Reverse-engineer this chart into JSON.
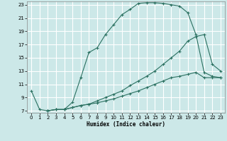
{
  "bg_color": "#cce8e8",
  "grid_color": "#b8d8d8",
  "line_color": "#2a7060",
  "xlabel": "Humidex (Indice chaleur)",
  "xmin": 0,
  "xmax": 23,
  "ymin": 7,
  "ymax": 23,
  "yticks": [
    7,
    9,
    11,
    13,
    15,
    17,
    19,
    21,
    23
  ],
  "xticks": [
    0,
    1,
    2,
    3,
    4,
    5,
    6,
    7,
    8,
    9,
    10,
    11,
    12,
    13,
    14,
    15,
    16,
    17,
    18,
    19,
    20,
    21,
    22,
    23
  ],
  "curve1_x": [
    0,
    1,
    2,
    3,
    4,
    5,
    6,
    7,
    8,
    9,
    10,
    11,
    12,
    13,
    14,
    15,
    16,
    17,
    18,
    19,
    20,
    21,
    22,
    23
  ],
  "curve1_y": [
    10.0,
    7.2,
    7.0,
    7.2,
    7.2,
    8.3,
    12.0,
    15.8,
    16.5,
    18.5,
    20.0,
    21.5,
    22.3,
    23.2,
    23.3,
    23.3,
    23.2,
    23.0,
    22.8,
    21.8,
    18.5,
    12.8,
    12.2,
    12.0
  ],
  "curve2_x": [
    2,
    3,
    4,
    5,
    6,
    7,
    8,
    9,
    10,
    11,
    12,
    13,
    14,
    15,
    16,
    17,
    18,
    19,
    20,
    21,
    22,
    23
  ],
  "curve2_y": [
    7.0,
    7.2,
    7.2,
    7.5,
    7.8,
    8.0,
    8.5,
    9.0,
    9.5,
    10.0,
    10.8,
    11.5,
    12.2,
    13.0,
    14.0,
    15.0,
    16.0,
    17.5,
    18.2,
    18.5,
    14.0,
    13.0
  ],
  "curve3_x": [
    2,
    3,
    4,
    5,
    6,
    7,
    8,
    9,
    10,
    11,
    12,
    13,
    14,
    15,
    16,
    17,
    18,
    19,
    20,
    21,
    22,
    23
  ],
  "curve3_y": [
    7.0,
    7.2,
    7.2,
    7.5,
    7.8,
    8.0,
    8.2,
    8.5,
    8.8,
    9.2,
    9.6,
    10.0,
    10.5,
    11.0,
    11.5,
    12.0,
    12.2,
    12.5,
    12.8,
    12.0,
    12.0,
    12.0
  ]
}
